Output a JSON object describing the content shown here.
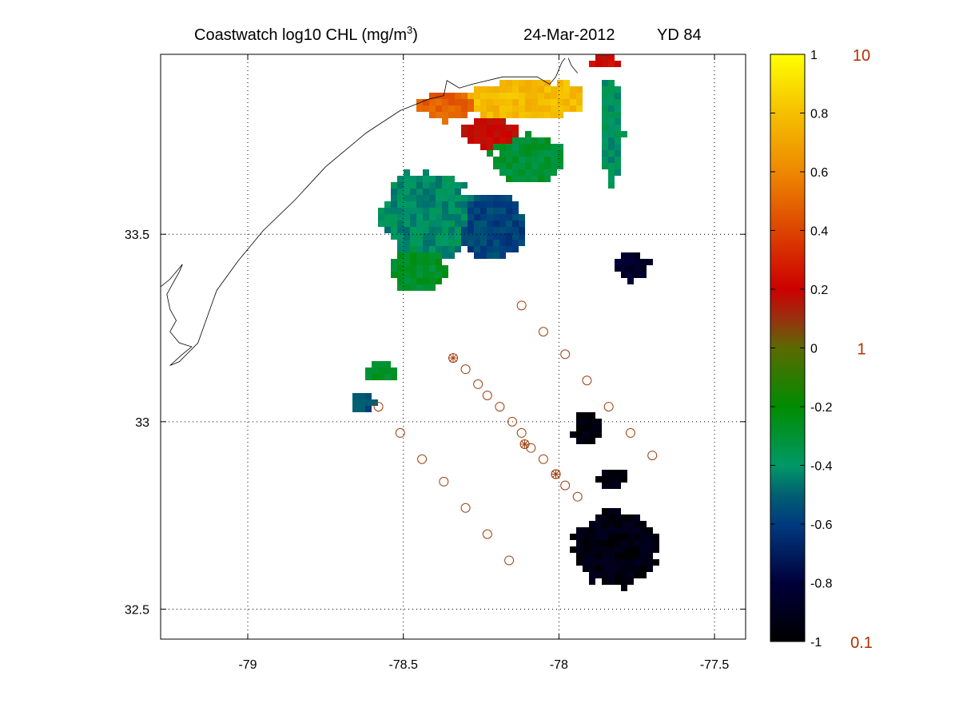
{
  "title": {
    "main": "Coastwatch  log10  CHL (mg/m",
    "superscript": "3",
    "close": ")",
    "date": "24-Mar-2012",
    "yearday": "YD 84"
  },
  "map": {
    "lon_range": [
      -79.28,
      -77.4
    ],
    "lat_range": [
      32.42,
      33.98
    ],
    "lon_ticks": [
      -79,
      -78.5,
      -78,
      -77.5
    ],
    "lon_tick_labels": [
      "-79",
      "-78.5",
      "-78",
      "-77.5"
    ],
    "lat_ticks": [
      33.5,
      33,
      32.5
    ],
    "lat_tick_labels": [
      "33.5",
      "33",
      "32.5"
    ],
    "grid": "dotted",
    "coastline": [
      [
        -79.28,
        33.36
      ],
      [
        -79.25,
        33.38
      ],
      [
        -79.22,
        33.41
      ],
      [
        -79.21,
        33.42
      ],
      [
        -79.22,
        33.4
      ],
      [
        -79.24,
        33.37
      ],
      [
        -79.26,
        33.34
      ],
      [
        -79.25,
        33.3
      ],
      [
        -79.23,
        33.27
      ],
      [
        -79.25,
        33.24
      ],
      [
        -79.22,
        33.21
      ],
      [
        -79.18,
        33.2
      ],
      [
        -79.21,
        33.18
      ],
      [
        -79.25,
        33.15
      ],
      [
        -79.22,
        33.16
      ],
      [
        -79.16,
        33.21
      ],
      [
        -79.1,
        33.35
      ],
      [
        -79.03,
        33.43
      ],
      [
        -78.95,
        33.51
      ],
      [
        -78.85,
        33.59
      ],
      [
        -78.75,
        33.68
      ],
      [
        -78.62,
        33.77
      ],
      [
        -78.51,
        33.83
      ],
      [
        -78.42,
        33.86
      ],
      [
        -78.37,
        33.87
      ],
      [
        -78.36,
        33.91
      ],
      [
        -78.34,
        33.9
      ],
      [
        -78.32,
        33.89
      ],
      [
        -78.28,
        33.9
      ],
      [
        -78.18,
        33.92
      ],
      [
        -78.07,
        33.92
      ],
      [
        -78.03,
        33.9
      ],
      [
        -78.01,
        33.92
      ],
      [
        -78.0,
        33.94
      ],
      [
        -77.99,
        33.96
      ],
      [
        -77.98,
        33.97
      ]
    ],
    "coastline2": [
      [
        -77.94,
        33.93
      ],
      [
        -77.96,
        33.95
      ],
      [
        -77.97,
        33.97
      ]
    ],
    "stations_circle": [
      [
        -78.12,
        33.31
      ],
      [
        -78.05,
        33.24
      ],
      [
        -77.98,
        33.18
      ],
      [
        -77.91,
        33.11
      ],
      [
        -77.84,
        33.04
      ],
      [
        -77.77,
        32.97
      ],
      [
        -77.7,
        32.91
      ],
      [
        -78.3,
        33.14
      ],
      [
        -78.26,
        33.1
      ],
      [
        -78.23,
        33.07
      ],
      [
        -78.19,
        33.04
      ],
      [
        -78.15,
        33.0
      ],
      [
        -78.12,
        32.97
      ],
      [
        -78.09,
        32.93
      ],
      [
        -78.05,
        32.9
      ],
      [
        -78.01,
        32.86
      ],
      [
        -77.98,
        32.83
      ],
      [
        -77.94,
        32.8
      ],
      [
        -78.58,
        33.04
      ],
      [
        -78.51,
        32.97
      ],
      [
        -78.44,
        32.9
      ],
      [
        -78.37,
        32.84
      ],
      [
        -78.3,
        32.77
      ],
      [
        -78.23,
        32.7
      ],
      [
        -78.16,
        32.63
      ]
    ],
    "stations_star": [
      [
        -78.34,
        33.17
      ],
      [
        -78.11,
        32.94
      ],
      [
        -78.01,
        32.86
      ]
    ]
  },
  "colorbar": {
    "range": [
      -1,
      1
    ],
    "tick_values": [
      1,
      0.8,
      0.6,
      0.4,
      0.2,
      0,
      -0.2,
      -0.4,
      -0.6,
      -0.8,
      -1
    ],
    "tick_labels": [
      "1",
      "0.8",
      "0.6",
      "0.4",
      "0.2",
      "0",
      "-0.2",
      "-0.4",
      "-0.6",
      "-0.8",
      "-1"
    ],
    "right_labels": [
      {
        "value": 1,
        "text": "10"
      },
      {
        "value": 0,
        "text": "1"
      },
      {
        "value": -1,
        "text": "0.1"
      }
    ],
    "right_label_color": "#b03000",
    "color_stops": [
      [
        1,
        "#ffff00"
      ],
      [
        0.8,
        "#f5c000"
      ],
      [
        0.6,
        "#ee8800"
      ],
      [
        0.4,
        "#dd4400"
      ],
      [
        0.2,
        "#cc0000"
      ],
      [
        0.1,
        "#9a3010"
      ],
      [
        0,
        "#5a6a00"
      ],
      [
        -0.2,
        "#008c00"
      ],
      [
        -0.4,
        "#009966"
      ],
      [
        -0.5,
        "#006070"
      ],
      [
        -0.6,
        "#003a80"
      ],
      [
        -0.8,
        "#00003a"
      ],
      [
        -1,
        "#000000"
      ]
    ]
  },
  "station_color": "#a04010"
}
